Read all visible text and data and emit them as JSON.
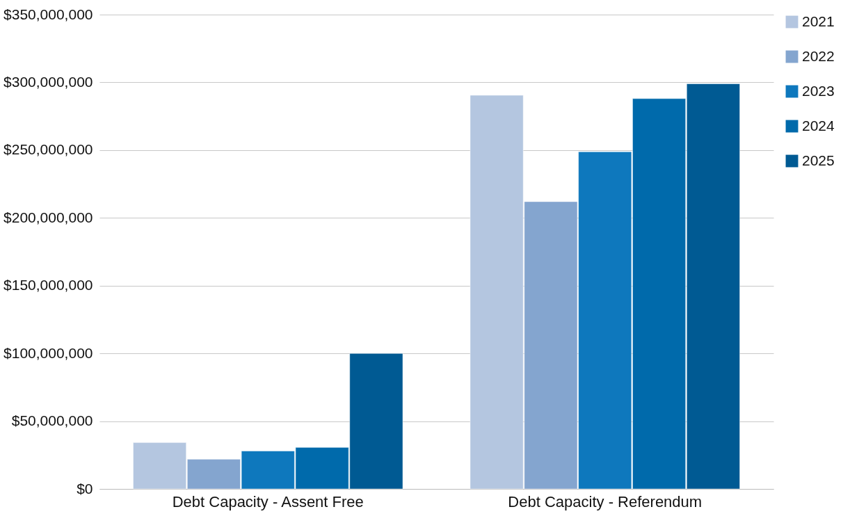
{
  "chart_data": {
    "type": "bar",
    "categories": [
      "Debt Capacity - Assent Free",
      "Debt Capacity - Referendum"
    ],
    "series": [
      {
        "name": "2021",
        "color": "#b4c6e0",
        "values": [
          34200000,
          290500000
        ]
      },
      {
        "name": "2022",
        "color": "#84a5cf",
        "values": [
          21900000,
          212000000
        ]
      },
      {
        "name": "2023",
        "color": "#0e78bd",
        "values": [
          28000000,
          248800000
        ]
      },
      {
        "name": "2024",
        "color": "#006aab",
        "values": [
          30600000,
          288000000
        ]
      },
      {
        "name": "2025",
        "color": "#005a93",
        "values": [
          100000000,
          299000000
        ]
      }
    ],
    "ylim": [
      0,
      350000000
    ],
    "yticks": [
      {
        "value": 0,
        "label": "$0"
      },
      {
        "value": 50000000,
        "label": "$50,000,000"
      },
      {
        "value": 100000000,
        "label": "$100,000,000"
      },
      {
        "value": 150000000,
        "label": "$150,000,000"
      },
      {
        "value": 200000000,
        "label": "$200,000,000"
      },
      {
        "value": 250000000,
        "label": "$250,000,000"
      },
      {
        "value": 300000000,
        "label": "$300,000,000"
      },
      {
        "value": 350000000,
        "label": "$350,000,000"
      }
    ],
    "grid": "y",
    "legend": "top right"
  }
}
